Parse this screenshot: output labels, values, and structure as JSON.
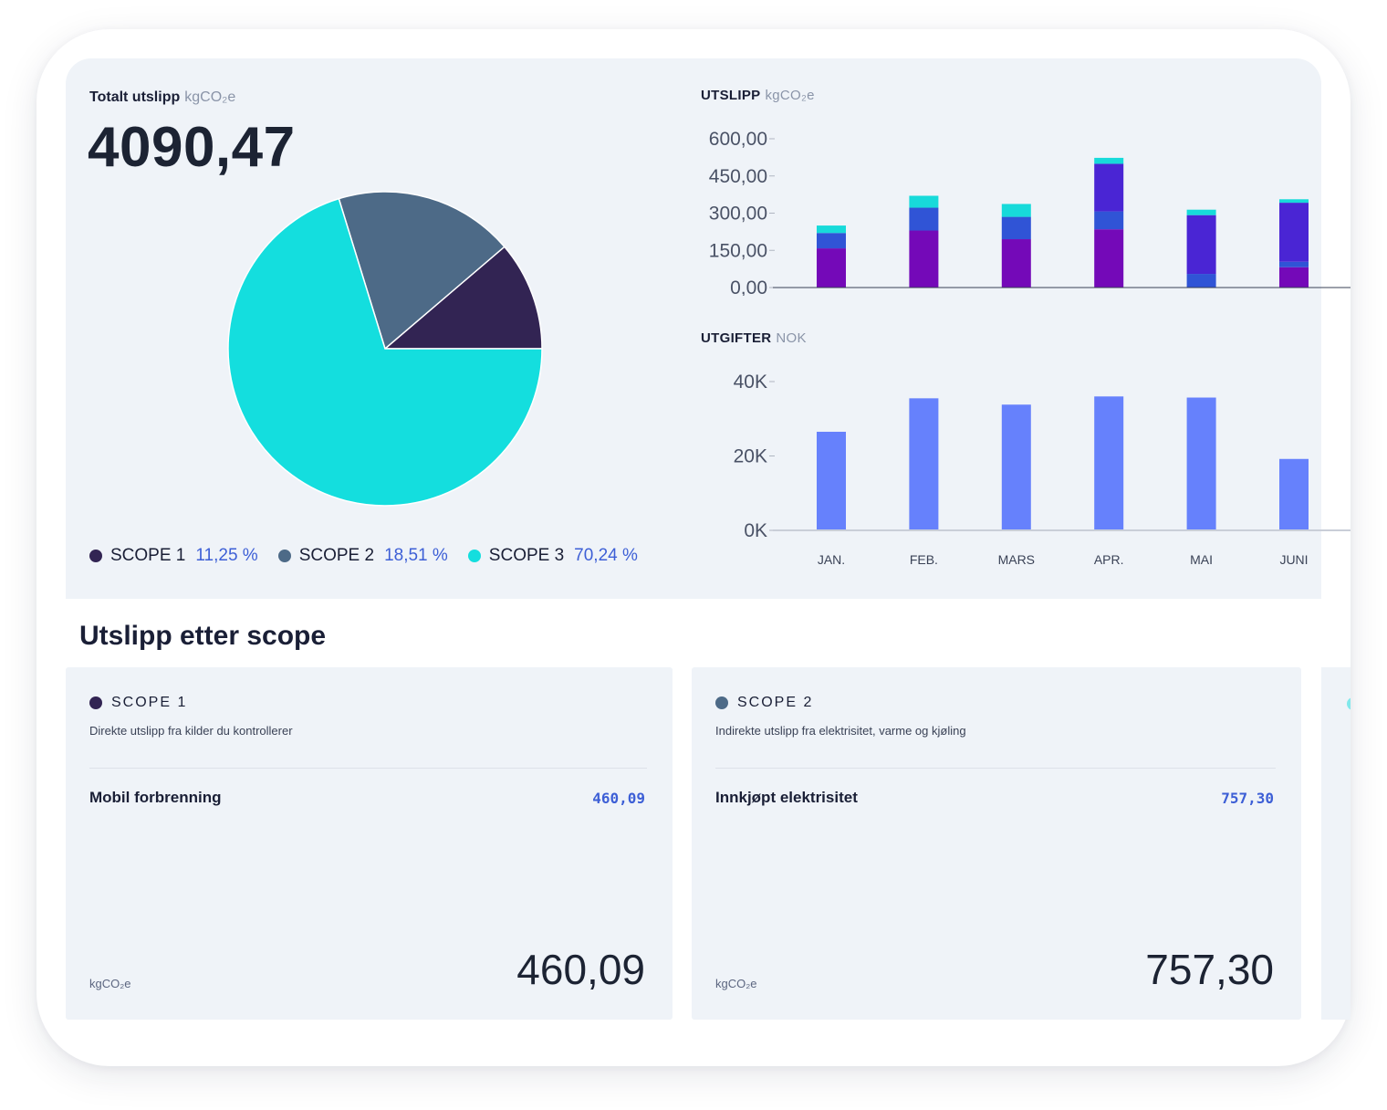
{
  "summary": {
    "total_label": "Totalt utslipp",
    "unit": "kgCO₂e",
    "total_value": "4090,47"
  },
  "pie": {
    "type": "pie",
    "slices": [
      {
        "name": "SCOPE 1",
        "value": 11.25,
        "label": "11,25 %",
        "color": "#322453"
      },
      {
        "name": "SCOPE 2",
        "value": 18.51,
        "label": "18,51 %",
        "color": "#4d6a87"
      },
      {
        "name": "SCOPE 3",
        "value": 70.24,
        "label": "70,24 %",
        "color": "#14dede"
      }
    ]
  },
  "chart_data": [
    {
      "type": "bar",
      "title": "UTSLIPP",
      "unit": "kgCO₂e",
      "stacked": true,
      "categories": [
        "JAN.",
        "FEB.",
        "MARS",
        "APR.",
        "MAI",
        "JUNI"
      ],
      "y_ticks": [
        "0,00",
        "150,00",
        "300,00",
        "450,00",
        "600,00"
      ],
      "ylim": [
        0,
        600
      ],
      "series": [
        {
          "color": "#7409b8",
          "values": [
            158,
            230,
            195,
            235,
            0,
            82
          ]
        },
        {
          "color": "#3054d6",
          "values": [
            62,
            92,
            90,
            72,
            55,
            22
          ]
        },
        {
          "color": "#4a25d4",
          "values": [
            0,
            0,
            0,
            192,
            237,
            238
          ]
        },
        {
          "color": "#17dada",
          "values": [
            30,
            48,
            52,
            24,
            22,
            14
          ]
        }
      ]
    },
    {
      "type": "bar",
      "title": "UTGIFTER",
      "unit": "NOK",
      "categories": [
        "JAN.",
        "FEB.",
        "MARS",
        "APR.",
        "MAI",
        "JUNI"
      ],
      "y_ticks": [
        "0K",
        "20K",
        "40K"
      ],
      "ylim": [
        0,
        40000
      ],
      "series": [
        {
          "color": "#6681fc",
          "values": [
            26500,
            35500,
            33800,
            36000,
            35700,
            19200
          ]
        }
      ]
    }
  ],
  "section_title": "Utslipp etter scope",
  "cards": [
    {
      "title": "SCOPE 1",
      "color": "#322453",
      "description": "Direkte utslipp fra kilder du kontrollerer",
      "item_name": "Mobil forbrenning",
      "item_value": "460,09",
      "unit": "kgCO₂e",
      "total": "460,09"
    },
    {
      "title": "SCOPE 2",
      "color": "#4d6a87",
      "description": "Indirekte utslipp fra elektrisitet, varme og kjøling",
      "item_name": "Innkjøpt elektrisitet",
      "item_value": "757,30",
      "unit": "kgCO₂e",
      "total": "757,30"
    }
  ]
}
